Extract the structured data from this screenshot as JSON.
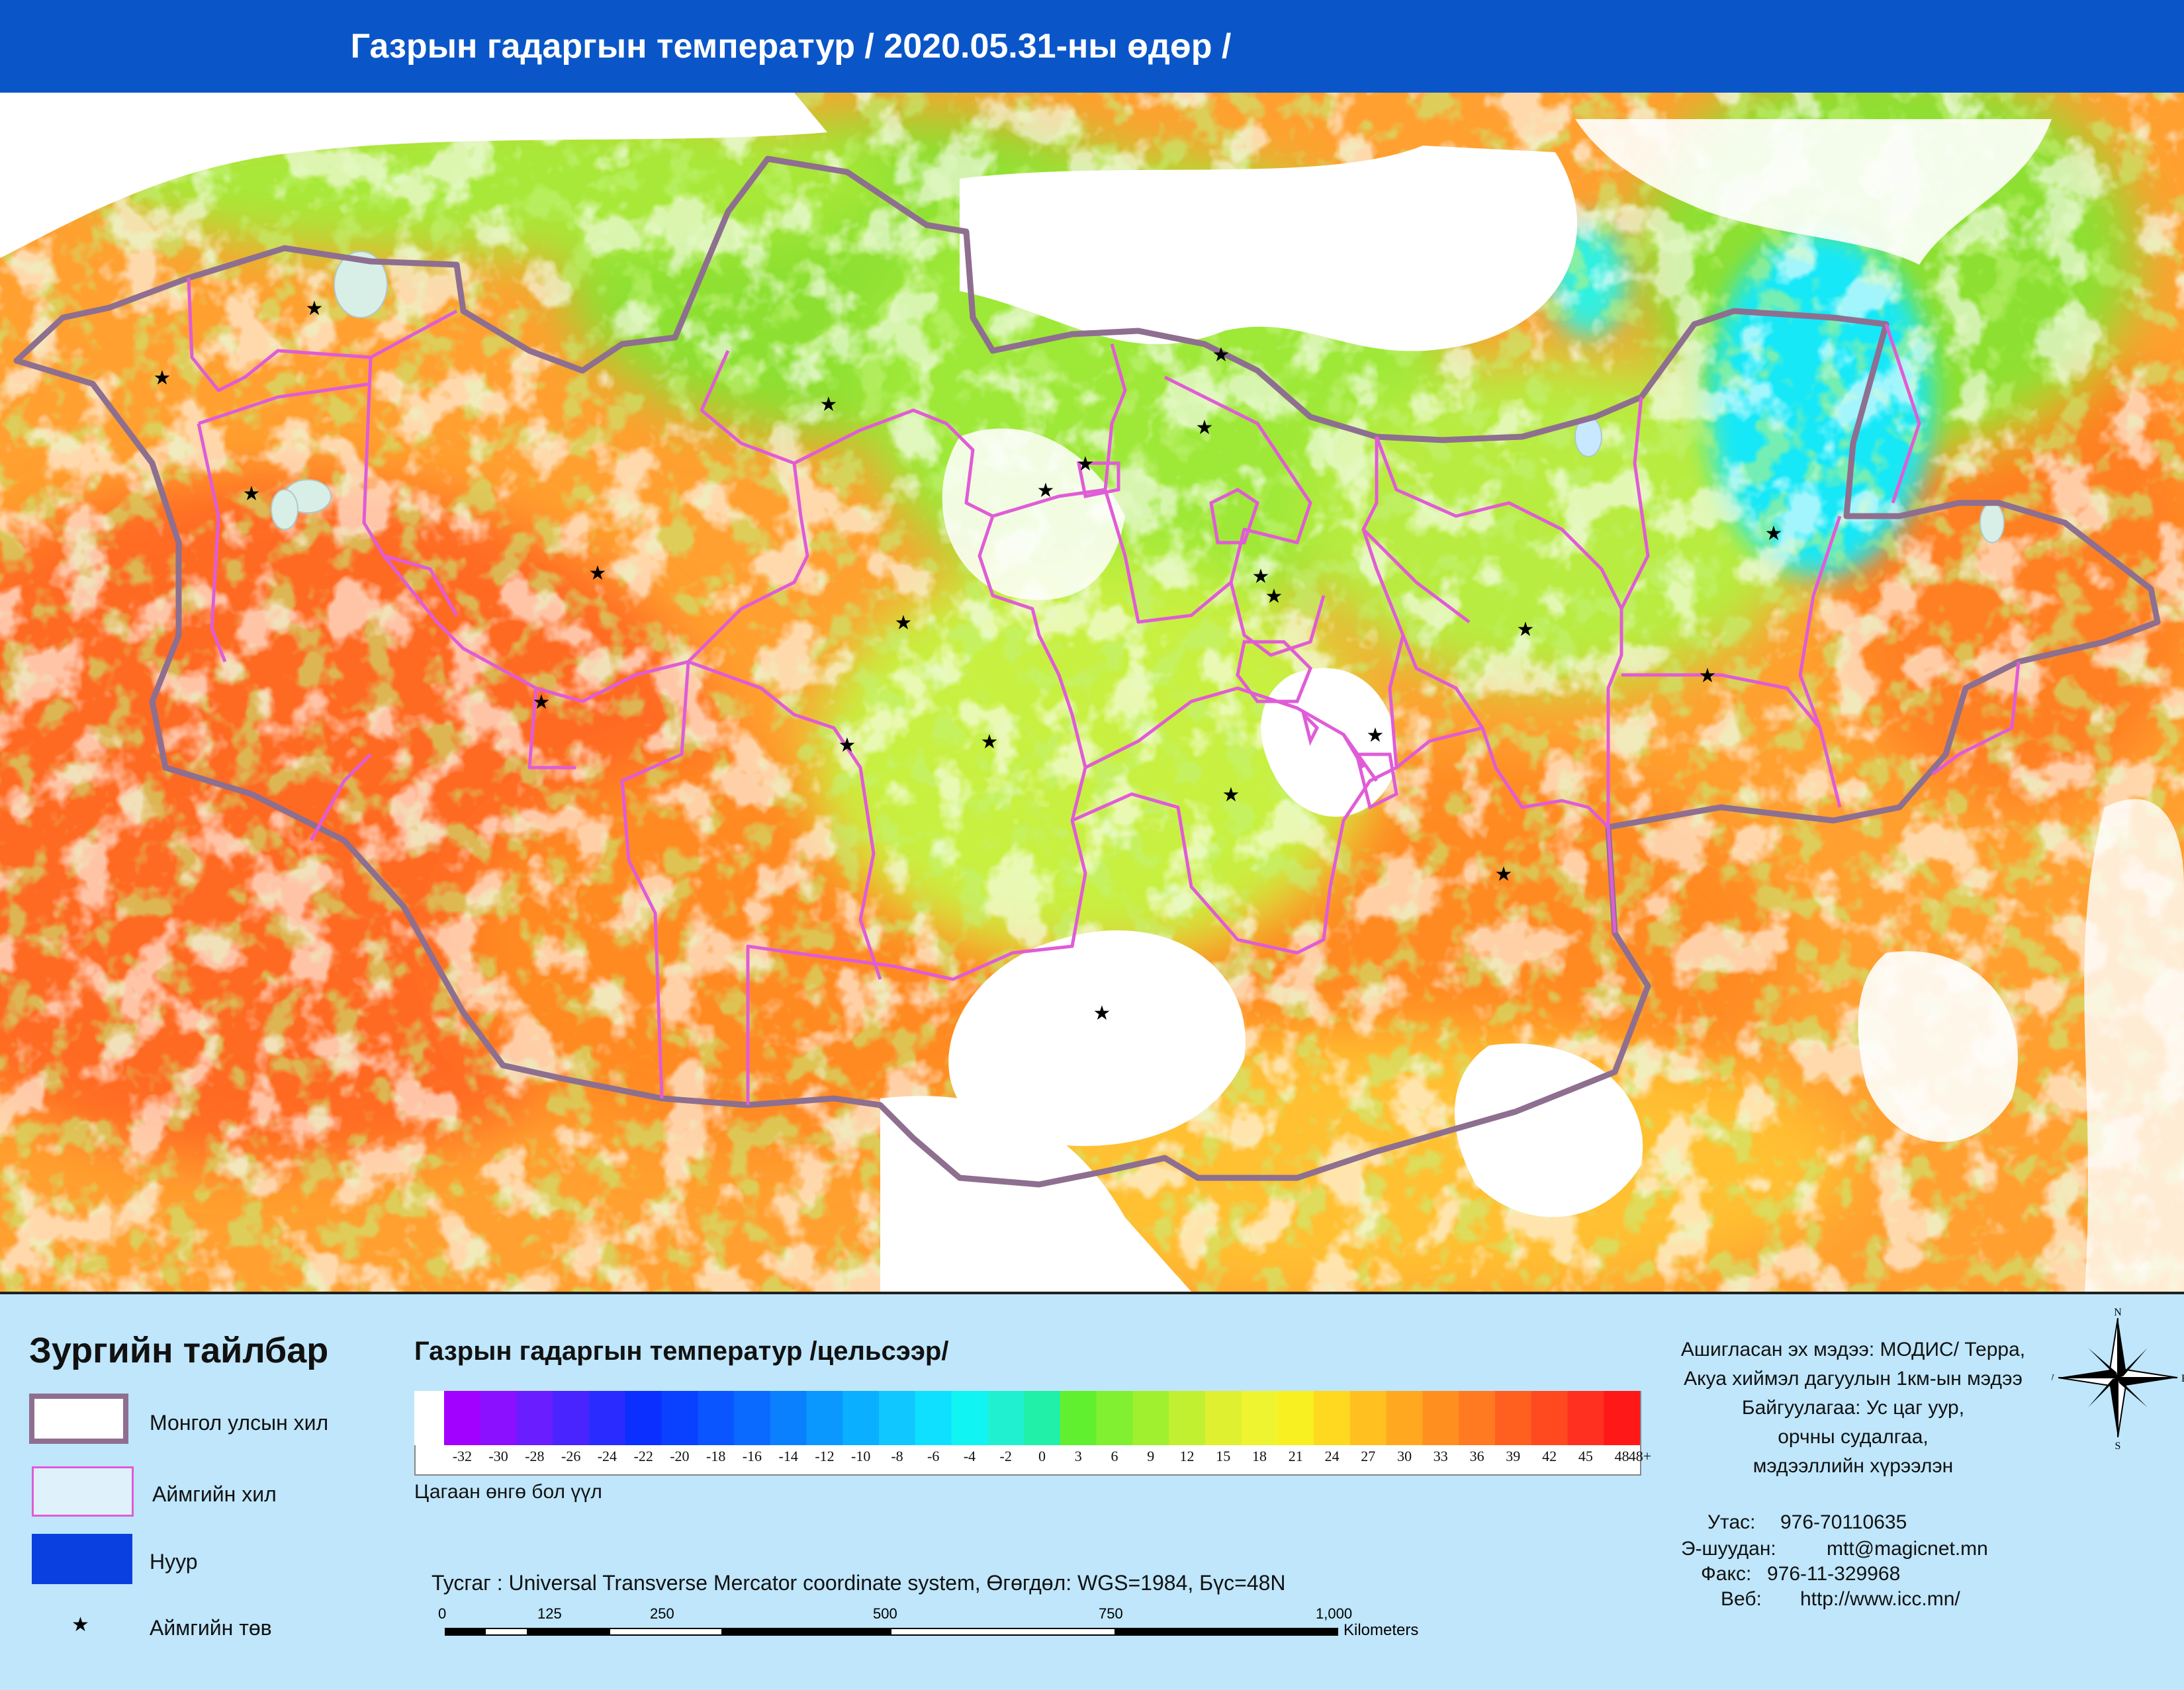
{
  "header": {
    "title": "Газрын гадаргын температур / 2020.05.31-ны өдөр /"
  },
  "legend": {
    "title": "Зургийн тайлбар",
    "items": [
      {
        "label": "Монгол улсын хил",
        "color": "#8e6f8f"
      },
      {
        "label": "Аймгийн хил",
        "color": "#e05cd6"
      },
      {
        "label": "Нуур",
        "color": "#0a3fe0"
      },
      {
        "label": "Аймгийн төв",
        "symbol": "★"
      }
    ]
  },
  "colorbar": {
    "title": "Газрын гадаргын температур /цельсээр/",
    "labels": [
      "-32",
      "-30",
      "-28",
      "-26",
      "-24",
      "-22",
      "-20",
      "-18",
      "-16",
      "-14",
      "-12",
      "-10",
      "-8",
      "-6",
      "-4",
      "-2",
      "0",
      "3",
      "6",
      "9",
      "12",
      "15",
      "18",
      "21",
      "24",
      "27",
      "30",
      "33",
      "36",
      "39",
      "42",
      "45",
      "48",
      "48+"
    ],
    "colors": [
      "#a200ff",
      "#8a10ff",
      "#6a1dff",
      "#4a24ff",
      "#2a2bff",
      "#0a2fff",
      "#0a40ff",
      "#0a55ff",
      "#0a6aff",
      "#0a80ff",
      "#0a98ff",
      "#0ab0ff",
      "#10c8ff",
      "#10e0ff",
      "#10f4f4",
      "#20f0d0",
      "#20f0a8",
      "#60f030",
      "#80f030",
      "#a0f030",
      "#c0f030",
      "#dff030",
      "#eef530",
      "#f8f020",
      "#ffd820",
      "#ffc020",
      "#ffa820",
      "#ff9020",
      "#ff7a20",
      "#ff6020",
      "#ff4a20",
      "#ff3020",
      "#ff1818"
    ],
    "note": "Цагаан өнгө бол үүл"
  },
  "projection": "Тусгаг : Universal Transverse Mercator coordinate system, Өгөгдөл: WGS=1984, Бүс=48N",
  "scalebar": {
    "ticks": [
      "0",
      "125",
      "250",
      "500",
      "750",
      "1,000"
    ],
    "unit": "Kilometers"
  },
  "source": {
    "lines": [
      "Ашигласан эх мэдээ: МОДИС/ Терра,",
      "Акуа хиймэл дагуулын 1км-ын мэдээ",
      "Байгуулагаа: Ус цаг уур,",
      "орчны судалгаа,",
      "мэдээллийн хүрээлэн"
    ]
  },
  "contact": {
    "phone_label": "Утас:",
    "phone": "976-70110635",
    "email_label": "Э-шуудан:",
    "email": "mtt@magicnet.mn",
    "fax_label": "Факс:",
    "fax": "976-11-329968",
    "web_label": "Веб:",
    "web": "http://www.icc.mn/"
  },
  "compass": {
    "n": "N",
    "s": "S",
    "e": "E",
    "w": "W"
  }
}
